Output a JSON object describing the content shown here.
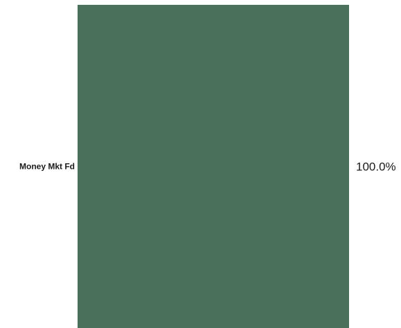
{
  "chart_data": {
    "type": "bar",
    "orientation": "stacked-100-percent",
    "categories": [
      "Money Mkt Fd"
    ],
    "values": [
      100.0
    ],
    "data_labels": [
      "100.0%"
    ],
    "ylim": [
      0,
      100
    ],
    "grid": false,
    "legend": "none",
    "colors": {
      "bar": "#4a705c"
    }
  }
}
